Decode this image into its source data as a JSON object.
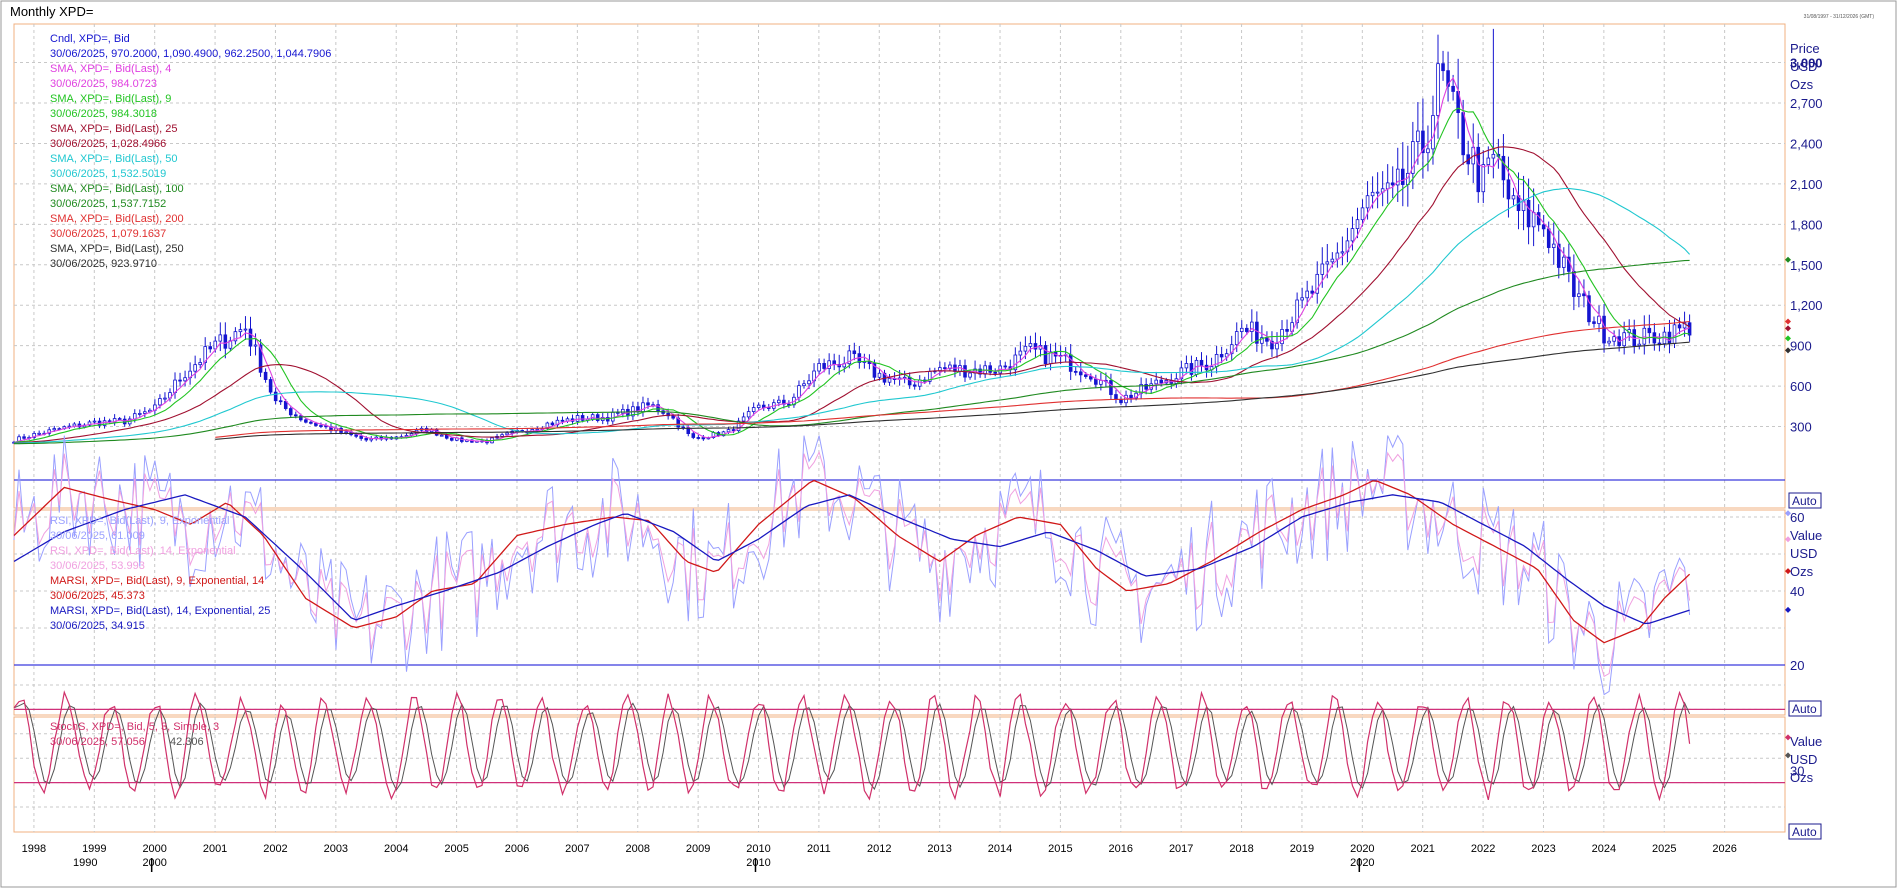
{
  "window": {
    "title": "Monthly XPD=",
    "stamp": "31/08/1997 - 31/12/2026 (GMT)"
  },
  "colors": {
    "candle": "#1515d0",
    "sma4": "#e040e0",
    "sma9": "#22c422",
    "sma25": "#a01030",
    "sma50": "#20c8d0",
    "sma100": "#208a20",
    "sma200": "#e03030",
    "sma250": "#303030",
    "rsi9": "#9aa0ff",
    "rsi14": "#f0a0e0",
    "marsi9": "#d01818",
    "marsi14": "#1818c0",
    "stoch_k": "#d0306a",
    "stoch_d": "#555555",
    "level": "#3b3bdd",
    "stoch_level": "#d0307a"
  },
  "legend": {
    "price": [
      {
        "label": "Cndl, XPD=, Bid",
        "value": "30/06/2025, 970.2000, 1,090.4900, 962.2500, 1,044.7906",
        "color": "#1515d0"
      },
      {
        "label": "SMA, XPD=, Bid(Last),  4",
        "value": "30/06/2025, 984.0723",
        "color": "#e040e0"
      },
      {
        "label": "SMA, XPD=, Bid(Last),  9",
        "value": "30/06/2025, 984.3018",
        "color": "#22c422"
      },
      {
        "label": "SMA, XPD=, Bid(Last),  25",
        "value": "30/06/2025, 1,028.4966",
        "color": "#a01030"
      },
      {
        "label": "SMA, XPD=, Bid(Last),  50",
        "value": "30/06/2025, 1,532.5019",
        "color": "#20c8d0"
      },
      {
        "label": "SMA, XPD=, Bid(Last),  100",
        "value": "30/06/2025, 1,537.7152",
        "color": "#208a20"
      },
      {
        "label": "SMA, XPD=, Bid(Last),  200",
        "value": "30/06/2025, 1,079.1637",
        "color": "#e03030"
      },
      {
        "label": "SMA, XPD=, Bid(Last),  250",
        "value": "30/06/2025, 923.9710",
        "color": "#303030"
      }
    ],
    "rsi": [
      {
        "label": "RSI, XPD=, Bid(Last),  9, Exponential",
        "value": "30/06/2025, 61.009",
        "color": "#9aa0ff"
      },
      {
        "label": "RSI, XPD=, Bid(Last),  14, Exponential",
        "value": "30/06/2025, 53.993",
        "color": "#f0a0e0"
      },
      {
        "label": "MARSI, XPD=, Bid(Last),  9, Exponential, 14",
        "value": "30/06/2025, 45.373",
        "color": "#d01818"
      },
      {
        "label": "MARSI, XPD=, Bid(Last),  14, Exponential, 25",
        "value": "30/06/2025, 34.915",
        "color": "#1818c0"
      }
    ],
    "stoch": [
      {
        "label": "StochS, XPD=, Bid,  5, 3, Simple, 3",
        "value": "30/06/2025, 57.056",
        "value2": "42.306",
        "color": "#d0306a"
      }
    ]
  },
  "axes": {
    "price_header": [
      "Price",
      "USD",
      "Ozs"
    ],
    "value_header": [
      "Value",
      "USD",
      "Ozs"
    ],
    "auto_label": "Auto",
    "price_ticks": [
      "3,000",
      "2,700",
      "2,400",
      "2,100",
      "1,800",
      "1,500",
      "1,200",
      "900",
      "600",
      "300"
    ],
    "rsi_ticks": [
      "60",
      "40",
      "20"
    ],
    "stoch_ticks": [
      "30"
    ],
    "years": [
      "1998",
      "1999",
      "2000",
      "2001",
      "2002",
      "2003",
      "2004",
      "2005",
      "2006",
      "2007",
      "2008",
      "2009",
      "2010",
      "2011",
      "2012",
      "2013",
      "2014",
      "2015",
      "2016",
      "2017",
      "2018",
      "2019",
      "2020",
      "2021",
      "2022",
      "2023",
      "2024",
      "2025",
      "2026"
    ],
    "decades": [
      "1990",
      "2000",
      "2010",
      "2020"
    ]
  },
  "chart_data": [
    {
      "type": "candlestick",
      "title": "Monthly XPD=",
      "ylabel": "Price USD Ozs",
      "ylim": [
        0,
        3300
      ],
      "x_range": [
        "1997-09",
        "2026-12"
      ],
      "close_series": {
        "name": "Cndl, XPD=, Bid",
        "x": [
          1997.67,
          1998.0,
          1998.5,
          1999.0,
          1999.5,
          2000.0,
          2000.5,
          2001.0,
          2001.5,
          2002.0,
          2002.5,
          2003.0,
          2003.5,
          2004.0,
          2004.5,
          2005.0,
          2005.5,
          2006.0,
          2006.5,
          2007.0,
          2007.5,
          2008.0,
          2008.2,
          2008.5,
          2008.9,
          2009.5,
          2010.0,
          2010.5,
          2011.0,
          2011.5,
          2012.0,
          2012.5,
          2013.0,
          2013.5,
          2014.0,
          2014.5,
          2015.0,
          2015.5,
          2016.0,
          2016.5,
          2017.0,
          2017.5,
          2018.0,
          2018.5,
          2019.0,
          2019.5,
          2020.0,
          2020.2,
          2020.5,
          2021.0,
          2021.3,
          2021.5,
          2022.0,
          2022.2,
          2022.5,
          2023.0,
          2023.5,
          2024.0,
          2024.5,
          2025.0,
          2025.45
        ],
        "close": [
          200,
          240,
          290,
          330,
          340,
          430,
          700,
          900,
          1040,
          480,
          340,
          270,
          200,
          220,
          280,
          200,
          190,
          260,
          320,
          360,
          370,
          430,
          460,
          400,
          210,
          260,
          440,
          480,
          740,
          800,
          680,
          610,
          730,
          720,
          730,
          860,
          800,
          700,
          500,
          600,
          700,
          780,
          1020,
          950,
          1200,
          1500,
          1900,
          2000,
          1980,
          2380,
          2900,
          2600,
          2100,
          2300,
          1900,
          1800,
          1300,
          1000,
          950,
          980,
          1045
        ]
      },
      "series": [
        {
          "name": "SMA, XPD=, Bid(Last),  4",
          "last": 984.0723
        },
        {
          "name": "SMA, XPD=, Bid(Last),  9",
          "last": 984.3018
        },
        {
          "name": "SMA, XPD=, Bid(Last),  25",
          "last": 1028.4966
        },
        {
          "name": "SMA, XPD=, Bid(Last),  50",
          "last": 1532.5019
        },
        {
          "name": "SMA, XPD=, Bid(Last),  100",
          "last": 1537.7152
        },
        {
          "name": "SMA, XPD=, Bid(Last),  200",
          "last": 1079.1637
        },
        {
          "name": "SMA, XPD=, Bid(Last),  250",
          "last": 923.971
        }
      ]
    },
    {
      "type": "line",
      "ylim": [
        0,
        80
      ],
      "levels": [
        70,
        20
      ],
      "series": [
        {
          "name": "RSI, XPD=, Bid(Last),  9, Exponential",
          "last": 61.009
        },
        {
          "name": "RSI, XPD=, Bid(Last),  14, Exponential",
          "last": 53.993
        },
        {
          "name": "MARSI, XPD=, Bid(Last),  9, Exponential, 14",
          "last": 45.373,
          "x": [
            1997.67,
            1998.5,
            1999.2,
            2000.0,
            2000.6,
            2001.2,
            2001.8,
            2002.5,
            2003.3,
            2004.0,
            2004.6,
            2005.3,
            2006.0,
            2006.8,
            2007.6,
            2008.2,
            2008.8,
            2009.3,
            2010.0,
            2010.9,
            2011.6,
            2012.3,
            2013.0,
            2013.6,
            2014.3,
            2015.0,
            2015.6,
            2016.1,
            2016.8,
            2017.5,
            2018.3,
            2019.0,
            2019.7,
            2020.2,
            2020.8,
            2021.5,
            2022.2,
            2022.9,
            2023.5,
            2024.0,
            2024.6,
            2025.0,
            2025.45
          ],
          "y": [
            55,
            68,
            65,
            62,
            58,
            64,
            55,
            38,
            30,
            33,
            40,
            42,
            55,
            58,
            60,
            59,
            48,
            45,
            58,
            70,
            65,
            55,
            48,
            55,
            60,
            58,
            46,
            40,
            42,
            48,
            56,
            62,
            66,
            70,
            66,
            58,
            52,
            46,
            32,
            26,
            30,
            38,
            45
          ]
        },
        {
          "name": "MARSI, XPD=, Bid(Last),  14, Exponential, 25",
          "last": 34.915,
          "x": [
            1997.67,
            1998.5,
            1999.5,
            2000.5,
            2001.5,
            2002.5,
            2003.3,
            2004.0,
            2004.8,
            2005.7,
            2006.5,
            2007.3,
            2007.8,
            2008.6,
            2009.3,
            2010.0,
            2010.8,
            2011.5,
            2012.3,
            2013.2,
            2014.0,
            2014.8,
            2015.6,
            2016.4,
            2017.3,
            2018.2,
            2019.0,
            2019.8,
            2020.5,
            2021.3,
            2022.0,
            2022.7,
            2023.4,
            2024.0,
            2024.7,
            2025.45
          ],
          "y": [
            48,
            56,
            62,
            66,
            60,
            45,
            32,
            36,
            40,
            45,
            52,
            58,
            61,
            56,
            48,
            54,
            63,
            66,
            60,
            54,
            52,
            56,
            51,
            44,
            46,
            52,
            60,
            64,
            66,
            64,
            58,
            52,
            43,
            36,
            31,
            35
          ]
        }
      ]
    },
    {
      "type": "line",
      "ylim": [
        0,
        100
      ],
      "levels": [
        80,
        20
      ],
      "series": [
        {
          "name": "StochS %K",
          "last": 57.056
        },
        {
          "name": "StochS %D",
          "last": 42.306
        }
      ]
    }
  ]
}
